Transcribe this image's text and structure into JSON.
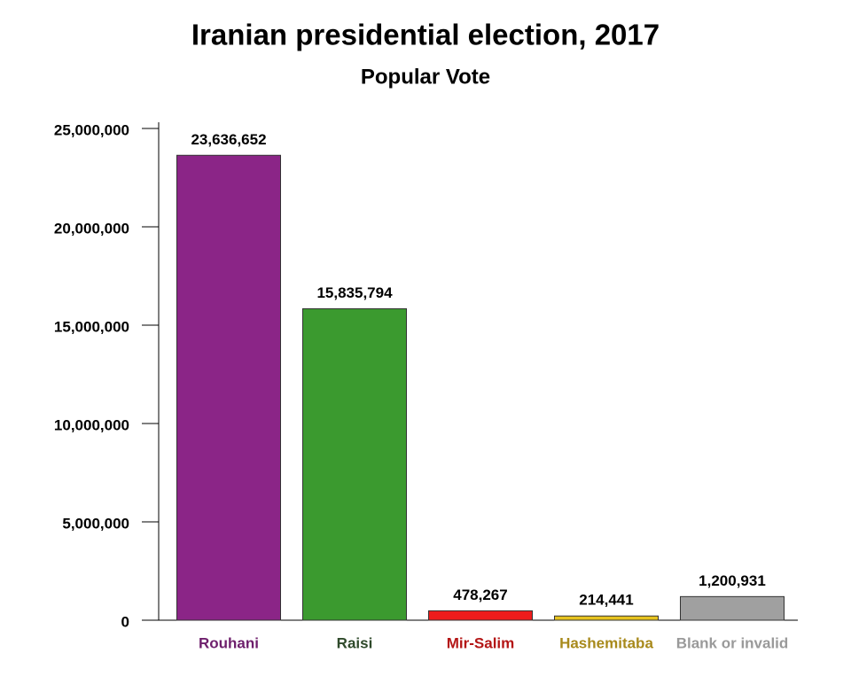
{
  "chart_data": {
    "type": "bar",
    "title": "Iranian presidential election, 2017",
    "subtitle": "Popular Vote",
    "categories": [
      "Rouhani",
      "Raisi",
      "Mir-Salim",
      "Hashemitaba",
      "Blank or invalid"
    ],
    "values": [
      23636652,
      15835794,
      478267,
      214441,
      1200931
    ],
    "value_labels": [
      "23,636,652",
      "15,835,794",
      "478,267",
      "214,441",
      "1,200,931"
    ],
    "colors": [
      "#8b2587",
      "#3b9a2f",
      "#ee1c1c",
      "#e6c21f",
      "#a0a0a0"
    ],
    "label_colors": [
      "#6e1f6c",
      "#2f4a2b",
      "#b41616",
      "#a88a1c",
      "#9a9a9a"
    ],
    "ylim": [
      0,
      25000000
    ],
    "yticks": [
      0,
      {
        "value": 5000000,
        "label": "5,000,000"
      },
      {
        "value": 10000000,
        "label": "10,000,000"
      },
      {
        "value": 15000000,
        "label": "15,000,000"
      },
      {
        "value": 20000000,
        "label": "20,000,000"
      },
      {
        "value": 25000000,
        "label": "25,000,000"
      }
    ],
    "grid": false
  }
}
